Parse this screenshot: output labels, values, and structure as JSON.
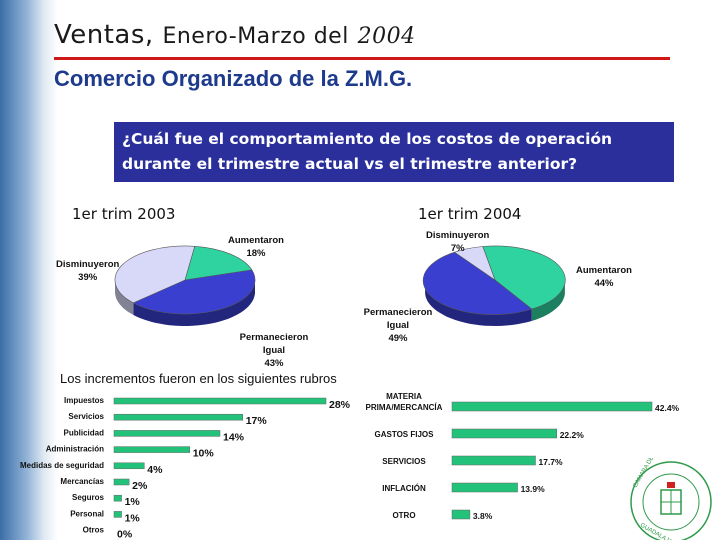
{
  "slide": {
    "title_word": "Ventas,",
    "title_rest": "Enero-Marzo del",
    "title_year": "2004",
    "subtitle": "Comercio Organizado de la Z.M.G.",
    "question_line1": "¿Cuál fue el comportamiento de los costos de operación",
    "question_line2": "durante el trimestre actual vs el trimestre anterior?",
    "rubros_heading": "Los incrementos fueron en los siguientes rubros",
    "colors": {
      "accent_rule": "#d01818",
      "question_box": "#2b2f9c",
      "pie_teal": "#2fd3a0",
      "pie_blue": "#3a3fd0",
      "pie_lavender": "#d8d8f8",
      "bar_green": "#22c27a"
    },
    "logo": {
      "type": "seal",
      "text": "CAMARA DE COMERCIO DE GUADALAJARA"
    }
  },
  "chart_data": [
    {
      "type": "pie",
      "title": "1er trim 2003",
      "slices": [
        {
          "label": "Aumentaron",
          "value": 18,
          "value_label": "18%",
          "color": "#2fd3a0"
        },
        {
          "label": "Permanecieron Igual",
          "value": 43,
          "value_label": "43%",
          "color": "#3a3fd0"
        },
        {
          "label": "Disminuyeron",
          "value": 39,
          "value_label": "39%",
          "color": "#d8d8f8"
        }
      ]
    },
    {
      "type": "pie",
      "title": "1er trim 2004",
      "slices": [
        {
          "label": "Aumentaron",
          "value": 44,
          "value_label": "44%",
          "color": "#2fd3a0"
        },
        {
          "label": "Permanecieron Igual",
          "value": 49,
          "value_label": "49%",
          "color": "#3a3fd0"
        },
        {
          "label": "Disminuyeron",
          "value": 7,
          "value_label": "7%",
          "color": "#d8d8f8"
        }
      ]
    },
    {
      "type": "bar",
      "orientation": "horizontal",
      "categories": [
        "Impuestos",
        "Servicios",
        "Publicidad",
        "Administración",
        "Medidas de seguridad",
        "Mercancías",
        "Seguros",
        "Personal",
        "Otros"
      ],
      "values": [
        28,
        17,
        14,
        10,
        4,
        2,
        1,
        1,
        0
      ],
      "value_labels": [
        "28%",
        "17%",
        "14%",
        "10%",
        "4%",
        "2%",
        "1%",
        "1%",
        "0%"
      ],
      "xlim": [
        0,
        28
      ]
    },
    {
      "type": "bar",
      "orientation": "horizontal",
      "categories": [
        "MATERIA PRIMA/MERCANCÍA",
        "GASTOS FIJOS",
        "SERVICIOS",
        "INFLACIÓN",
        "OTRO"
      ],
      "values": [
        42.4,
        22.2,
        17.7,
        13.9,
        3.8
      ],
      "value_labels": [
        "42.4%",
        "22.2%",
        "17.7%",
        "13.9%",
        "3.8%"
      ],
      "xlim": [
        0,
        42.4
      ]
    }
  ]
}
